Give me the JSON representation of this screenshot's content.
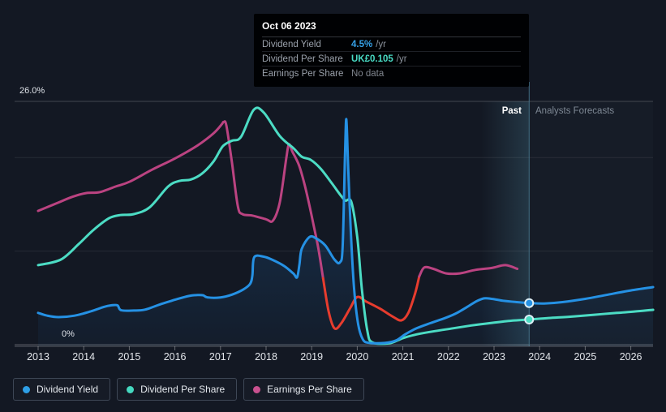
{
  "y_axis": {
    "top_label": "26.0%",
    "bottom_label": "0%"
  },
  "annotations": {
    "past_label": "Past",
    "forecast_label": "Analysts Forecasts"
  },
  "x_axis": {
    "years": [
      "2013",
      "2014",
      "2015",
      "2016",
      "2017",
      "2018",
      "2019",
      "2020",
      "2021",
      "2022",
      "2023",
      "2024",
      "2025",
      "2026"
    ]
  },
  "tooltip": {
    "title": "Oct 06 2023",
    "rows": [
      {
        "label": "Dividend Yield",
        "value": "4.5%",
        "suffix": "/yr",
        "value_color": "#36a2e8"
      },
      {
        "label": "Dividend Per Share",
        "value": "UK£0.105",
        "suffix": "/yr",
        "value_color": "#49dcc5"
      },
      {
        "label": "Earnings Per Share",
        "value": "No data",
        "suffix": "",
        "value_color": "#80868f"
      }
    ]
  },
  "legend": {
    "items": [
      {
        "label": "Dividend Yield",
        "color": "#2e9fe6"
      },
      {
        "label": "Dividend Per Share",
        "color": "#45d9c0"
      },
      {
        "label": "Earnings Per Share",
        "color": "#c9518f"
      }
    ]
  },
  "chart_data": {
    "type": "line",
    "x_domain": [
      2012.5,
      2026.5
    ],
    "y_domain_percent": [
      0,
      26
    ],
    "y_gridlines_percent": [
      26,
      20,
      10,
      0
    ],
    "grid": true,
    "legend_position": "bottom",
    "past_band_start": 2022.72,
    "divider_date": "Oct 06 2023",
    "divider_x": 2023.77,
    "colors": {
      "dividend_yield": "#2591e4",
      "dividend_per_share": "#4cdcc4",
      "earnings_per_share": "#bb4381",
      "earnings_negative": "#e73c2e",
      "divider": "#4b7e95"
    },
    "series": [
      {
        "id": "dividend_yield",
        "name": "Dividend Yield",
        "unit": "percent_per_yr",
        "marker_at_divider": 4.45,
        "points": [
          [
            2013.0,
            3.4
          ],
          [
            2013.2,
            3.1
          ],
          [
            2013.45,
            2.95
          ],
          [
            2013.8,
            3.1
          ],
          [
            2014.15,
            3.55
          ],
          [
            2014.45,
            4.05
          ],
          [
            2014.6,
            4.2
          ],
          [
            2014.74,
            4.2
          ],
          [
            2014.82,
            3.68
          ],
          [
            2015.1,
            3.65
          ],
          [
            2015.35,
            3.75
          ],
          [
            2015.7,
            4.35
          ],
          [
            2016.0,
            4.8
          ],
          [
            2016.3,
            5.2
          ],
          [
            2016.5,
            5.3
          ],
          [
            2016.62,
            5.28
          ],
          [
            2016.72,
            5.05
          ],
          [
            2017.0,
            5.05
          ],
          [
            2017.25,
            5.35
          ],
          [
            2017.5,
            5.9
          ],
          [
            2017.65,
            6.5
          ],
          [
            2017.7,
            7.4
          ],
          [
            2017.74,
            9.35
          ],
          [
            2017.95,
            9.4
          ],
          [
            2018.15,
            9.05
          ],
          [
            2018.4,
            8.4
          ],
          [
            2018.6,
            7.6
          ],
          [
            2018.68,
            7.2
          ],
          [
            2018.73,
            8.5
          ],
          [
            2018.78,
            10.2
          ],
          [
            2018.95,
            11.5
          ],
          [
            2019.1,
            11.35
          ],
          [
            2019.3,
            10.6
          ],
          [
            2019.5,
            9.1
          ],
          [
            2019.62,
            8.8
          ],
          [
            2019.68,
            10.5
          ],
          [
            2019.73,
            20.0
          ],
          [
            2019.76,
            24.1
          ],
          [
            2019.8,
            19.0
          ],
          [
            2019.86,
            12.0
          ],
          [
            2019.93,
            6.0
          ],
          [
            2020.02,
            2.2
          ],
          [
            2020.12,
            0.6
          ],
          [
            2020.25,
            0.2
          ],
          [
            2020.6,
            0.18
          ],
          [
            2020.85,
            0.45
          ],
          [
            2021.05,
            1.1
          ],
          [
            2021.3,
            1.75
          ],
          [
            2021.6,
            2.3
          ],
          [
            2021.9,
            2.8
          ],
          [
            2022.15,
            3.3
          ],
          [
            2022.4,
            4.0
          ],
          [
            2022.6,
            4.6
          ],
          [
            2022.78,
            4.95
          ],
          [
            2022.95,
            4.9
          ],
          [
            2023.2,
            4.7
          ],
          [
            2023.5,
            4.55
          ],
          [
            2023.77,
            4.45
          ],
          [
            2024.1,
            4.4
          ],
          [
            2024.5,
            4.55
          ],
          [
            2025.0,
            4.9
          ],
          [
            2025.5,
            5.35
          ],
          [
            2026.0,
            5.8
          ],
          [
            2026.49,
            6.15
          ]
        ]
      },
      {
        "id": "dividend_per_share",
        "name": "Dividend Per Share",
        "unit": "display_percent_scale",
        "value_at_divider_label": "UK£0.105",
        "marker_at_divider": 2.69,
        "points": [
          [
            2013.0,
            8.5
          ],
          [
            2013.5,
            9.1
          ],
          [
            2013.9,
            10.8
          ],
          [
            2014.2,
            12.2
          ],
          [
            2014.55,
            13.5
          ],
          [
            2014.8,
            13.85
          ],
          [
            2015.1,
            13.95
          ],
          [
            2015.45,
            14.7
          ],
          [
            2015.85,
            16.9
          ],
          [
            2016.1,
            17.5
          ],
          [
            2016.35,
            17.65
          ],
          [
            2016.6,
            18.3
          ],
          [
            2016.85,
            19.6
          ],
          [
            2017.05,
            21.2
          ],
          [
            2017.25,
            21.8
          ],
          [
            2017.45,
            22.2
          ],
          [
            2017.73,
            25.1
          ],
          [
            2017.95,
            24.8
          ],
          [
            2018.3,
            22.3
          ],
          [
            2018.6,
            21.0
          ],
          [
            2018.78,
            20.1
          ],
          [
            2018.98,
            19.75
          ],
          [
            2019.2,
            18.8
          ],
          [
            2019.45,
            17.2
          ],
          [
            2019.63,
            16.0
          ],
          [
            2019.74,
            15.4
          ],
          [
            2019.87,
            15.25
          ],
          [
            2020.0,
            11.5
          ],
          [
            2020.1,
            6.0
          ],
          [
            2020.22,
            1.5
          ],
          [
            2020.33,
            0.25
          ],
          [
            2020.7,
            0.15
          ],
          [
            2021.0,
            0.7
          ],
          [
            2021.3,
            1.1
          ],
          [
            2021.7,
            1.45
          ],
          [
            2022.1,
            1.75
          ],
          [
            2022.5,
            2.05
          ],
          [
            2022.9,
            2.3
          ],
          [
            2023.35,
            2.55
          ],
          [
            2023.77,
            2.69
          ],
          [
            2024.2,
            2.85
          ],
          [
            2024.7,
            3.0
          ],
          [
            2025.2,
            3.2
          ],
          [
            2025.7,
            3.4
          ],
          [
            2026.1,
            3.55
          ],
          [
            2026.49,
            3.73
          ]
        ]
      },
      {
        "id": "earnings_per_share",
        "name": "Earnings Per Share",
        "unit": "display_percent_scale",
        "red_segment": {
          "from": 2019.25,
          "to": 2021.36
        },
        "points": [
          [
            2013.0,
            14.3
          ],
          [
            2013.4,
            15.1
          ],
          [
            2013.75,
            15.8
          ],
          [
            2014.05,
            16.2
          ],
          [
            2014.35,
            16.3
          ],
          [
            2014.7,
            16.9
          ],
          [
            2015.0,
            17.4
          ],
          [
            2015.5,
            18.7
          ],
          [
            2016.0,
            19.9
          ],
          [
            2016.5,
            21.3
          ],
          [
            2016.85,
            22.6
          ],
          [
            2017.02,
            23.5
          ],
          [
            2017.07,
            23.8
          ],
          [
            2017.13,
            23.4
          ],
          [
            2017.25,
            19.5
          ],
          [
            2017.38,
            14.8
          ],
          [
            2017.48,
            13.95
          ],
          [
            2017.7,
            13.8
          ],
          [
            2018.0,
            13.4
          ],
          [
            2018.15,
            13.25
          ],
          [
            2018.3,
            15.2
          ],
          [
            2018.44,
            19.8
          ],
          [
            2018.5,
            21.4
          ],
          [
            2018.58,
            20.6
          ],
          [
            2018.72,
            19.2
          ],
          [
            2018.84,
            17.2
          ],
          [
            2018.95,
            14.9
          ],
          [
            2019.05,
            12.6
          ],
          [
            2019.15,
            10.2
          ],
          [
            2019.25,
            7.1
          ],
          [
            2019.37,
            3.6
          ],
          [
            2019.5,
            1.75
          ],
          [
            2019.65,
            2.3
          ],
          [
            2019.85,
            3.95
          ],
          [
            2020.0,
            5.1
          ],
          [
            2020.2,
            4.6
          ],
          [
            2020.5,
            3.85
          ],
          [
            2020.78,
            3.0
          ],
          [
            2020.97,
            2.6
          ],
          [
            2021.12,
            3.4
          ],
          [
            2021.27,
            5.5
          ],
          [
            2021.36,
            7.3
          ],
          [
            2021.47,
            8.25
          ],
          [
            2021.67,
            8.1
          ],
          [
            2021.95,
            7.62
          ],
          [
            2022.25,
            7.62
          ],
          [
            2022.6,
            8.0
          ],
          [
            2022.95,
            8.2
          ],
          [
            2023.25,
            8.5
          ],
          [
            2023.51,
            8.1
          ]
        ]
      }
    ]
  }
}
